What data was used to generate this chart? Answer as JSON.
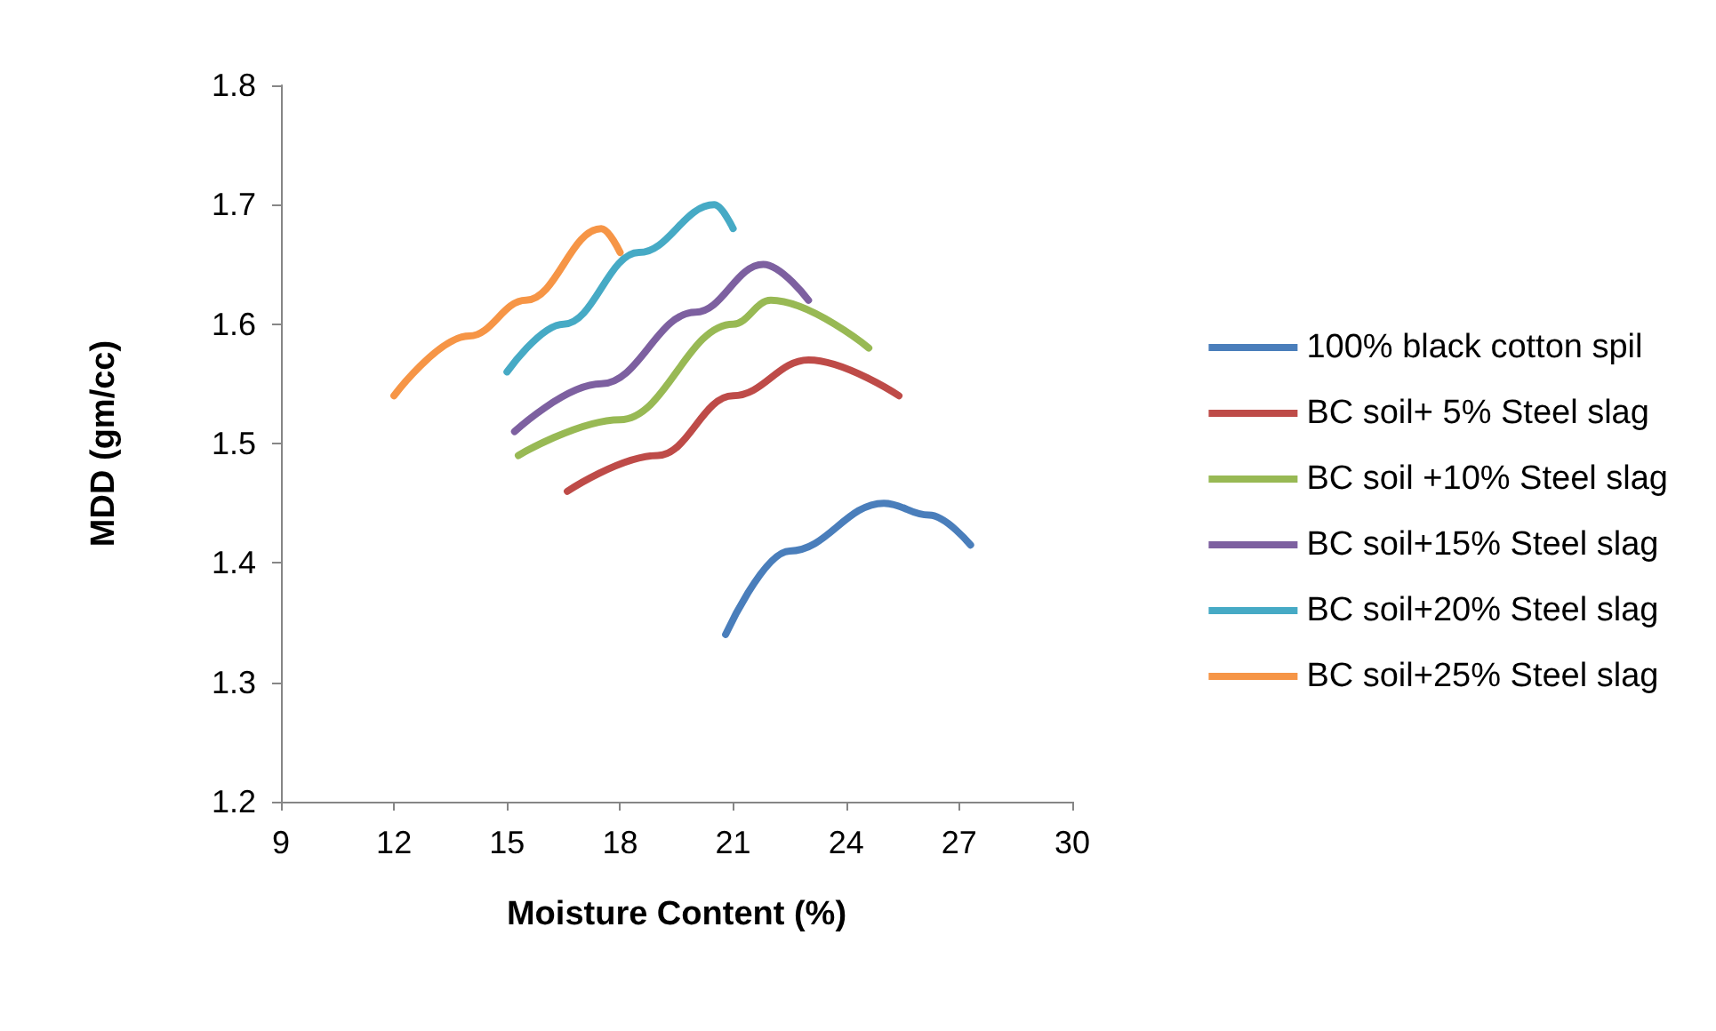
{
  "chart_data": {
    "type": "line",
    "xlabel": "Moisture Content (%)",
    "ylabel": "MDD (gm/cc)",
    "xlim": [
      9,
      30
    ],
    "xticks": [
      9,
      12,
      15,
      18,
      21,
      24,
      27,
      30
    ],
    "ylim": [
      1.2,
      1.8
    ],
    "yticks": [
      1.2,
      1.3,
      1.4,
      1.5,
      1.6,
      1.7,
      1.8
    ],
    "grid": false,
    "legend": "right",
    "marker": "none",
    "line_style": "solid",
    "series": [
      {
        "name": "100% black cotton spil",
        "color": "#4a7ebb",
        "x": [
          20.8,
          22.5,
          25,
          26.2,
          27.3
        ],
        "values": [
          1.34,
          1.41,
          1.45,
          1.44,
          1.415
        ]
      },
      {
        "name": "BC soil+ 5% Steel slag",
        "color": "#be4b48",
        "x": [
          16.6,
          19,
          21,
          23,
          25.4
        ],
        "values": [
          1.46,
          1.49,
          1.54,
          1.57,
          1.54
        ]
      },
      {
        "name": "BC soil +10% Steel slag",
        "color": "#98b954",
        "x": [
          15.3,
          18,
          21,
          22,
          24.6
        ],
        "values": [
          1.49,
          1.52,
          1.6,
          1.62,
          1.58
        ]
      },
      {
        "name": "BC soil+15% Steel slag",
        "color": "#7d60a0",
        "x": [
          15.2,
          17.5,
          20,
          21.8,
          23
        ],
        "values": [
          1.51,
          1.55,
          1.61,
          1.65,
          1.62
        ]
      },
      {
        "name": "BC soil+20% Steel slag",
        "color": "#46aac5",
        "x": [
          15,
          16.5,
          18.5,
          20.5,
          21
        ],
        "values": [
          1.56,
          1.6,
          1.66,
          1.7,
          1.68
        ]
      },
      {
        "name": "BC soil+25% Steel slag",
        "color": "#f69546",
        "x": [
          12,
          14,
          15.5,
          17.5,
          18
        ],
        "values": [
          1.54,
          1.59,
          1.62,
          1.68,
          1.66
        ]
      }
    ]
  }
}
